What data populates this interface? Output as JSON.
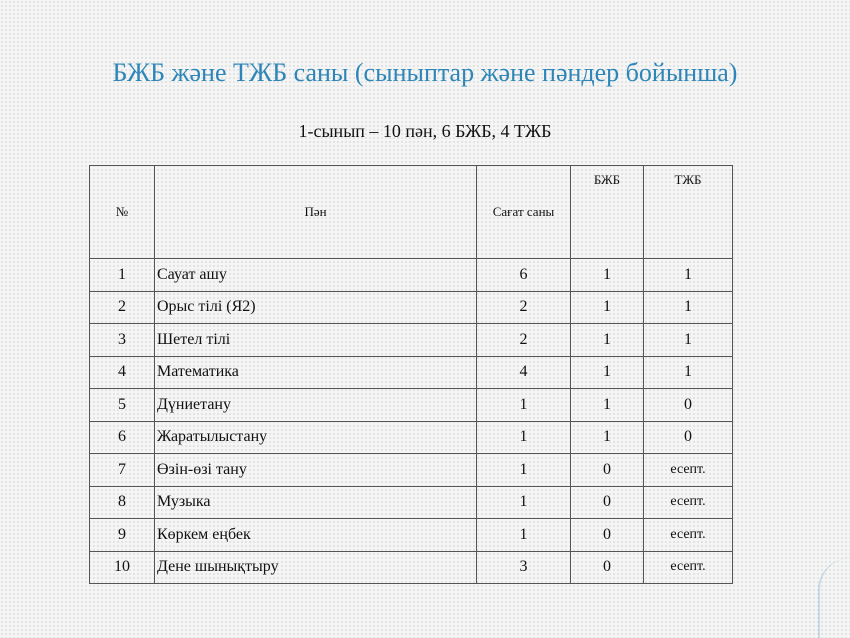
{
  "title": "БЖБ және ТЖБ саны (сыныптар және пәндер бойынша)",
  "subtitle": "1-сынып  – 10 пән, 6 БЖБ, 4 ТЖБ",
  "table": {
    "headers": [
      "№",
      "Пән",
      "Сағат саны",
      "БЖБ",
      "ТЖБ"
    ],
    "rows": [
      [
        "1",
        "Сауат  ашу",
        "6",
        "1",
        "1"
      ],
      [
        "2",
        "Орыс тілі (Я2)",
        "2",
        "1",
        "1"
      ],
      [
        "3",
        "Шетел  тілі",
        "2",
        "1",
        "1"
      ],
      [
        "4",
        "Математика",
        "4",
        "1",
        "1"
      ],
      [
        "5",
        "Дүниетану",
        "1",
        "1",
        "0"
      ],
      [
        "6",
        "Жаратылыстану",
        "1",
        "1",
        "0"
      ],
      [
        "7",
        "Өзін-өзі тану",
        "1",
        "0",
        "есепт."
      ],
      [
        "8",
        "Музыка",
        "1",
        "0",
        "есепт."
      ],
      [
        "9",
        "Көркем  еңбек",
        "1",
        "0",
        "есепт."
      ],
      [
        "10",
        "Дене  шынықтыру",
        "3",
        "0",
        "есепт."
      ]
    ]
  }
}
